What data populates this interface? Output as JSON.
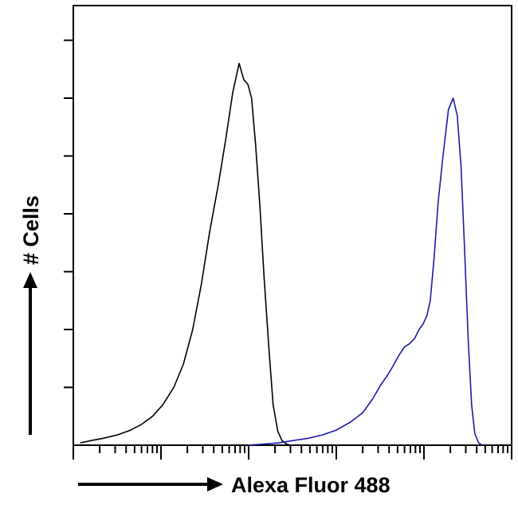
{
  "chart_data": {
    "type": "line",
    "title": "",
    "xlabel": "Alexa Fluor 488",
    "ylabel": "# Cells",
    "x_scale": "log",
    "xlim": [
      1,
      100000
    ],
    "ylim": [
      0,
      380
    ],
    "grid": false,
    "legend": "none",
    "series": [
      {
        "color": "#000000",
        "x": [
          1.2,
          1.6,
          2.2,
          3.2,
          4.5,
          6,
          8,
          10.5,
          14,
          18,
          23,
          29,
          36,
          45,
          55,
          66,
          78,
          88,
          98,
          108,
          120,
          135,
          150,
          170,
          190,
          215,
          240,
          270,
          300,
          340
        ],
        "y": [
          2,
          4,
          6,
          9,
          13,
          18,
          25,
          35,
          50,
          70,
          100,
          140,
          185,
          225,
          265,
          305,
          330,
          316,
          312,
          300,
          260,
          205,
          145,
          85,
          35,
          12,
          4,
          1,
          0,
          0
        ]
      },
      {
        "color": "#1a1aaa",
        "x": [
          100,
          150,
          220,
          320,
          480,
          700,
          1000,
          1450,
          2000,
          2600,
          3200,
          3800,
          4400,
          5200,
          6000,
          6900,
          7800,
          8800,
          9800,
          10800,
          11800,
          13000,
          14500,
          16500,
          19000,
          21500,
          24000,
          26500,
          29000,
          32000,
          35000,
          38000,
          42000,
          46000
        ],
        "y": [
          0,
          1,
          2,
          4,
          6,
          9,
          13,
          20,
          28,
          40,
          52,
          60,
          68,
          78,
          85,
          88,
          92,
          100,
          105,
          112,
          125,
          160,
          210,
          250,
          290,
          300,
          285,
          240,
          170,
          90,
          35,
          10,
          2,
          0
        ]
      }
    ]
  }
}
